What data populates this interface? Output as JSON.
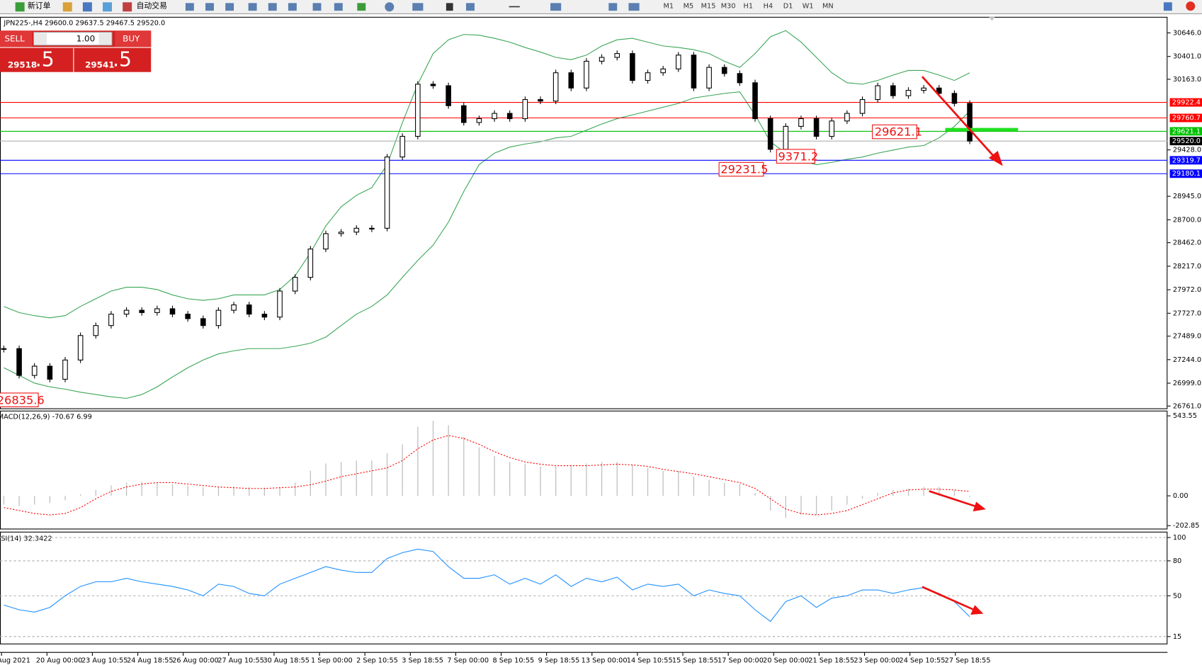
{
  "toolbar": {
    "new_order": "新订单",
    "auto_trading": "自动交易",
    "timeframes": [
      "M1",
      "M5",
      "M15",
      "M30",
      "H1",
      "H4",
      "D1",
      "W1",
      "MN"
    ]
  },
  "one_click": {
    "sell": "SELL",
    "buy": "BUY",
    "lot": "1.00",
    "sell_price": "29518",
    "sell_fraction": ".5",
    "buy_price": "29541",
    "buy_fraction": ".5"
  },
  "time_axis": {
    "labels": [
      "Aug 2021",
      "20 Aug 00:00",
      "23 Aug 10:55",
      "24 Aug 18:55",
      "26 Aug 00:00",
      "27 Aug 10:55",
      "30 Aug 18:55",
      "1 Sep 00:00",
      "2 Sep 10:55",
      "3 Sep 18:55",
      "7 Sep 00:00",
      "8 Sep 10:55",
      "9 Sep 18:55",
      "13 Sep 00:00",
      "14 Sep 10:55",
      "15 Sep 18:55",
      "17 Sep 00:00",
      "20 Sep 00:00",
      "21 Sep 18:55",
      "23 Sep 00:00",
      "24 Sep 10:55",
      "27 Sep 18:55"
    ]
  },
  "chart_data": [
    {
      "type": "candlestick",
      "title": "JPN225-,H4  29600.0 29637.5 29467.5 29520.0",
      "ylim": [
        26737,
        30813
      ],
      "yticks": [
        {
          "value": 30646,
          "label": "30646.0"
        },
        {
          "value": 30401,
          "label": "30401.0"
        },
        {
          "value": 30163,
          "label": "30163.0"
        },
        {
          "value": 29428,
          "label": "29428.0"
        },
        {
          "value": 28945,
          "label": "28945.0"
        },
        {
          "value": 28700,
          "label": "28700.0"
        },
        {
          "value": 28462,
          "label": "28462.0"
        },
        {
          "value": 28217,
          "label": "28217.0"
        },
        {
          "value": 27972,
          "label": "27972.0"
        },
        {
          "value": 27727,
          "label": "27727.0"
        },
        {
          "value": 27489,
          "label": "27489.0"
        },
        {
          "value": 27244,
          "label": "27244.0"
        },
        {
          "value": 26999,
          "label": "26999.0"
        },
        {
          "value": 26761,
          "label": "26761.0"
        }
      ],
      "values": [
        27359,
        27080,
        27176,
        27040,
        27240,
        27495,
        27599,
        27718,
        27758,
        27734,
        27774,
        27718,
        27671,
        27599,
        27758,
        27814,
        27718,
        27687,
        27958,
        28101,
        28396,
        28556,
        28572,
        28612,
        28612,
        29354,
        29569,
        30112,
        30096,
        29888,
        29713,
        29753,
        29808,
        29753,
        29952,
        29936,
        30231,
        30072,
        30351,
        30391,
        30431,
        30151,
        30231,
        30271,
        30415,
        30072,
        30287,
        30223,
        30127,
        29753,
        29434,
        29673,
        29753,
        29569,
        29729,
        29808,
        29952,
        30096,
        29992,
        30048,
        30072,
        30016,
        29912,
        29520
      ],
      "bands": [
        {
          "color": "#3aa655",
          "values": [
            27798,
            27734,
            27702,
            27679,
            27702,
            27798,
            27878,
            27958,
            27998,
            27998,
            27974,
            27918,
            27878,
            27862,
            27878,
            27918,
            27918,
            27918,
            27974,
            28117,
            28357,
            28636,
            28835,
            28955,
            29035,
            29274,
            29713,
            30112,
            30431,
            30574,
            30630,
            30622,
            30590,
            30550,
            30494,
            30447,
            30391,
            30367,
            30415,
            30510,
            30574,
            30590,
            30550,
            30510,
            30494,
            30471,
            30431,
            30351,
            30287,
            30431,
            30606,
            30670,
            30550,
            30391,
            30231,
            30127,
            30112,
            30151,
            30207,
            30255,
            30255,
            30207,
            30151,
            30231
          ]
        },
        {
          "color": "#3aa655",
          "values": [
            27160,
            27080,
            27000,
            26961,
            26937,
            26905,
            26881,
            26857,
            26841,
            26881,
            26961,
            27064,
            27160,
            27240,
            27304,
            27336,
            27359,
            27359,
            27359,
            27383,
            27415,
            27479,
            27599,
            27718,
            27798,
            27918,
            28101,
            28277,
            28436,
            28676,
            28995,
            29274,
            29394,
            29457,
            29489,
            29513,
            29553,
            29569,
            29633,
            29697,
            29753,
            29792,
            29832,
            29872,
            29912,
            29968,
            29992,
            30016,
            30032,
            29792,
            29513,
            29394,
            29314,
            29274,
            29298,
            29330,
            29354,
            29394,
            29426,
            29457,
            29473,
            29553,
            29673,
            29832
          ]
        }
      ],
      "levels": [
        {
          "price": 29922.4,
          "color": "#ff0000"
        },
        {
          "price": 29760.7,
          "color": "#ff0000"
        },
        {
          "price": 29621.1,
          "color": "#00c000"
        },
        {
          "price": {
            "value": 29520,
            "label": "29520.0"
          },
          "color": "#000000"
        },
        {
          "price": 29319.7,
          "color": "#0000ff"
        },
        {
          "price": 29180.1,
          "color": "#0000ff"
        }
      ],
      "annotations": [
        "29621.1",
        "9371.2",
        "29231.5",
        "26835.6"
      ]
    },
    {
      "type": "macd",
      "title": "MACD(12,26,9) -70.67 6.99",
      "ylim": [
        -223,
        579
      ],
      "yticks": [
        543.55,
        {
          "value": 0,
          "label": "0.00"
        },
        -202.85
      ],
      "series": [
        {
          "type": "bar",
          "color": "#c0c0c0",
          "values": [
            -60,
            -70,
            -60,
            -50,
            -30,
            10,
            40,
            70,
            90,
            95,
            90,
            80,
            70,
            60,
            60,
            65,
            60,
            55,
            60,
            90,
            170,
            220,
            230,
            240,
            240,
            290,
            350,
            470,
            510,
            480,
            400,
            330,
            270,
            230,
            220,
            200,
            200,
            210,
            220,
            230,
            230,
            210,
            190,
            170,
            170,
            130,
            110,
            90,
            80,
            20,
            -100,
            -150,
            -130,
            -130,
            -100,
            -60,
            -20,
            20,
            40,
            50,
            60,
            60,
            40,
            -10
          ]
        },
        {
          "type": "line",
          "color": "#ff0000",
          "values": [
            -80,
            -100,
            -120,
            -130,
            -120,
            -80,
            -20,
            30,
            60,
            80,
            90,
            90,
            80,
            70,
            60,
            55,
            50,
            50,
            55,
            60,
            75,
            100,
            130,
            150,
            170,
            190,
            240,
            320,
            380,
            410,
            390,
            350,
            300,
            260,
            230,
            215,
            205,
            205,
            205,
            210,
            215,
            210,
            200,
            180,
            165,
            150,
            130,
            110,
            90,
            50,
            -20,
            -90,
            -120,
            -130,
            -120,
            -100,
            -60,
            -20,
            20,
            40,
            45,
            45,
            40,
            30
          ]
        }
      ]
    },
    {
      "type": "line",
      "title": "RSI(14) 32.3422",
      "ylim": [
        9,
        105
      ],
      "yticks": [
        100,
        80,
        50,
        15
      ],
      "grid": true,
      "color": "#1e90ff",
      "values": [
        42,
        38,
        36,
        40,
        50,
        58,
        62,
        62,
        65,
        62,
        60,
        58,
        55,
        50,
        60,
        58,
        52,
        50,
        60,
        65,
        70,
        75,
        72,
        70,
        70,
        82,
        87,
        90,
        88,
        75,
        65,
        65,
        68,
        60,
        65,
        60,
        68,
        58,
        65,
        62,
        66,
        55,
        60,
        58,
        60,
        50,
        55,
        52,
        50,
        38,
        28,
        45,
        50,
        40,
        48,
        50,
        55,
        55,
        52,
        55,
        57,
        52,
        45,
        32
      ]
    }
  ]
}
